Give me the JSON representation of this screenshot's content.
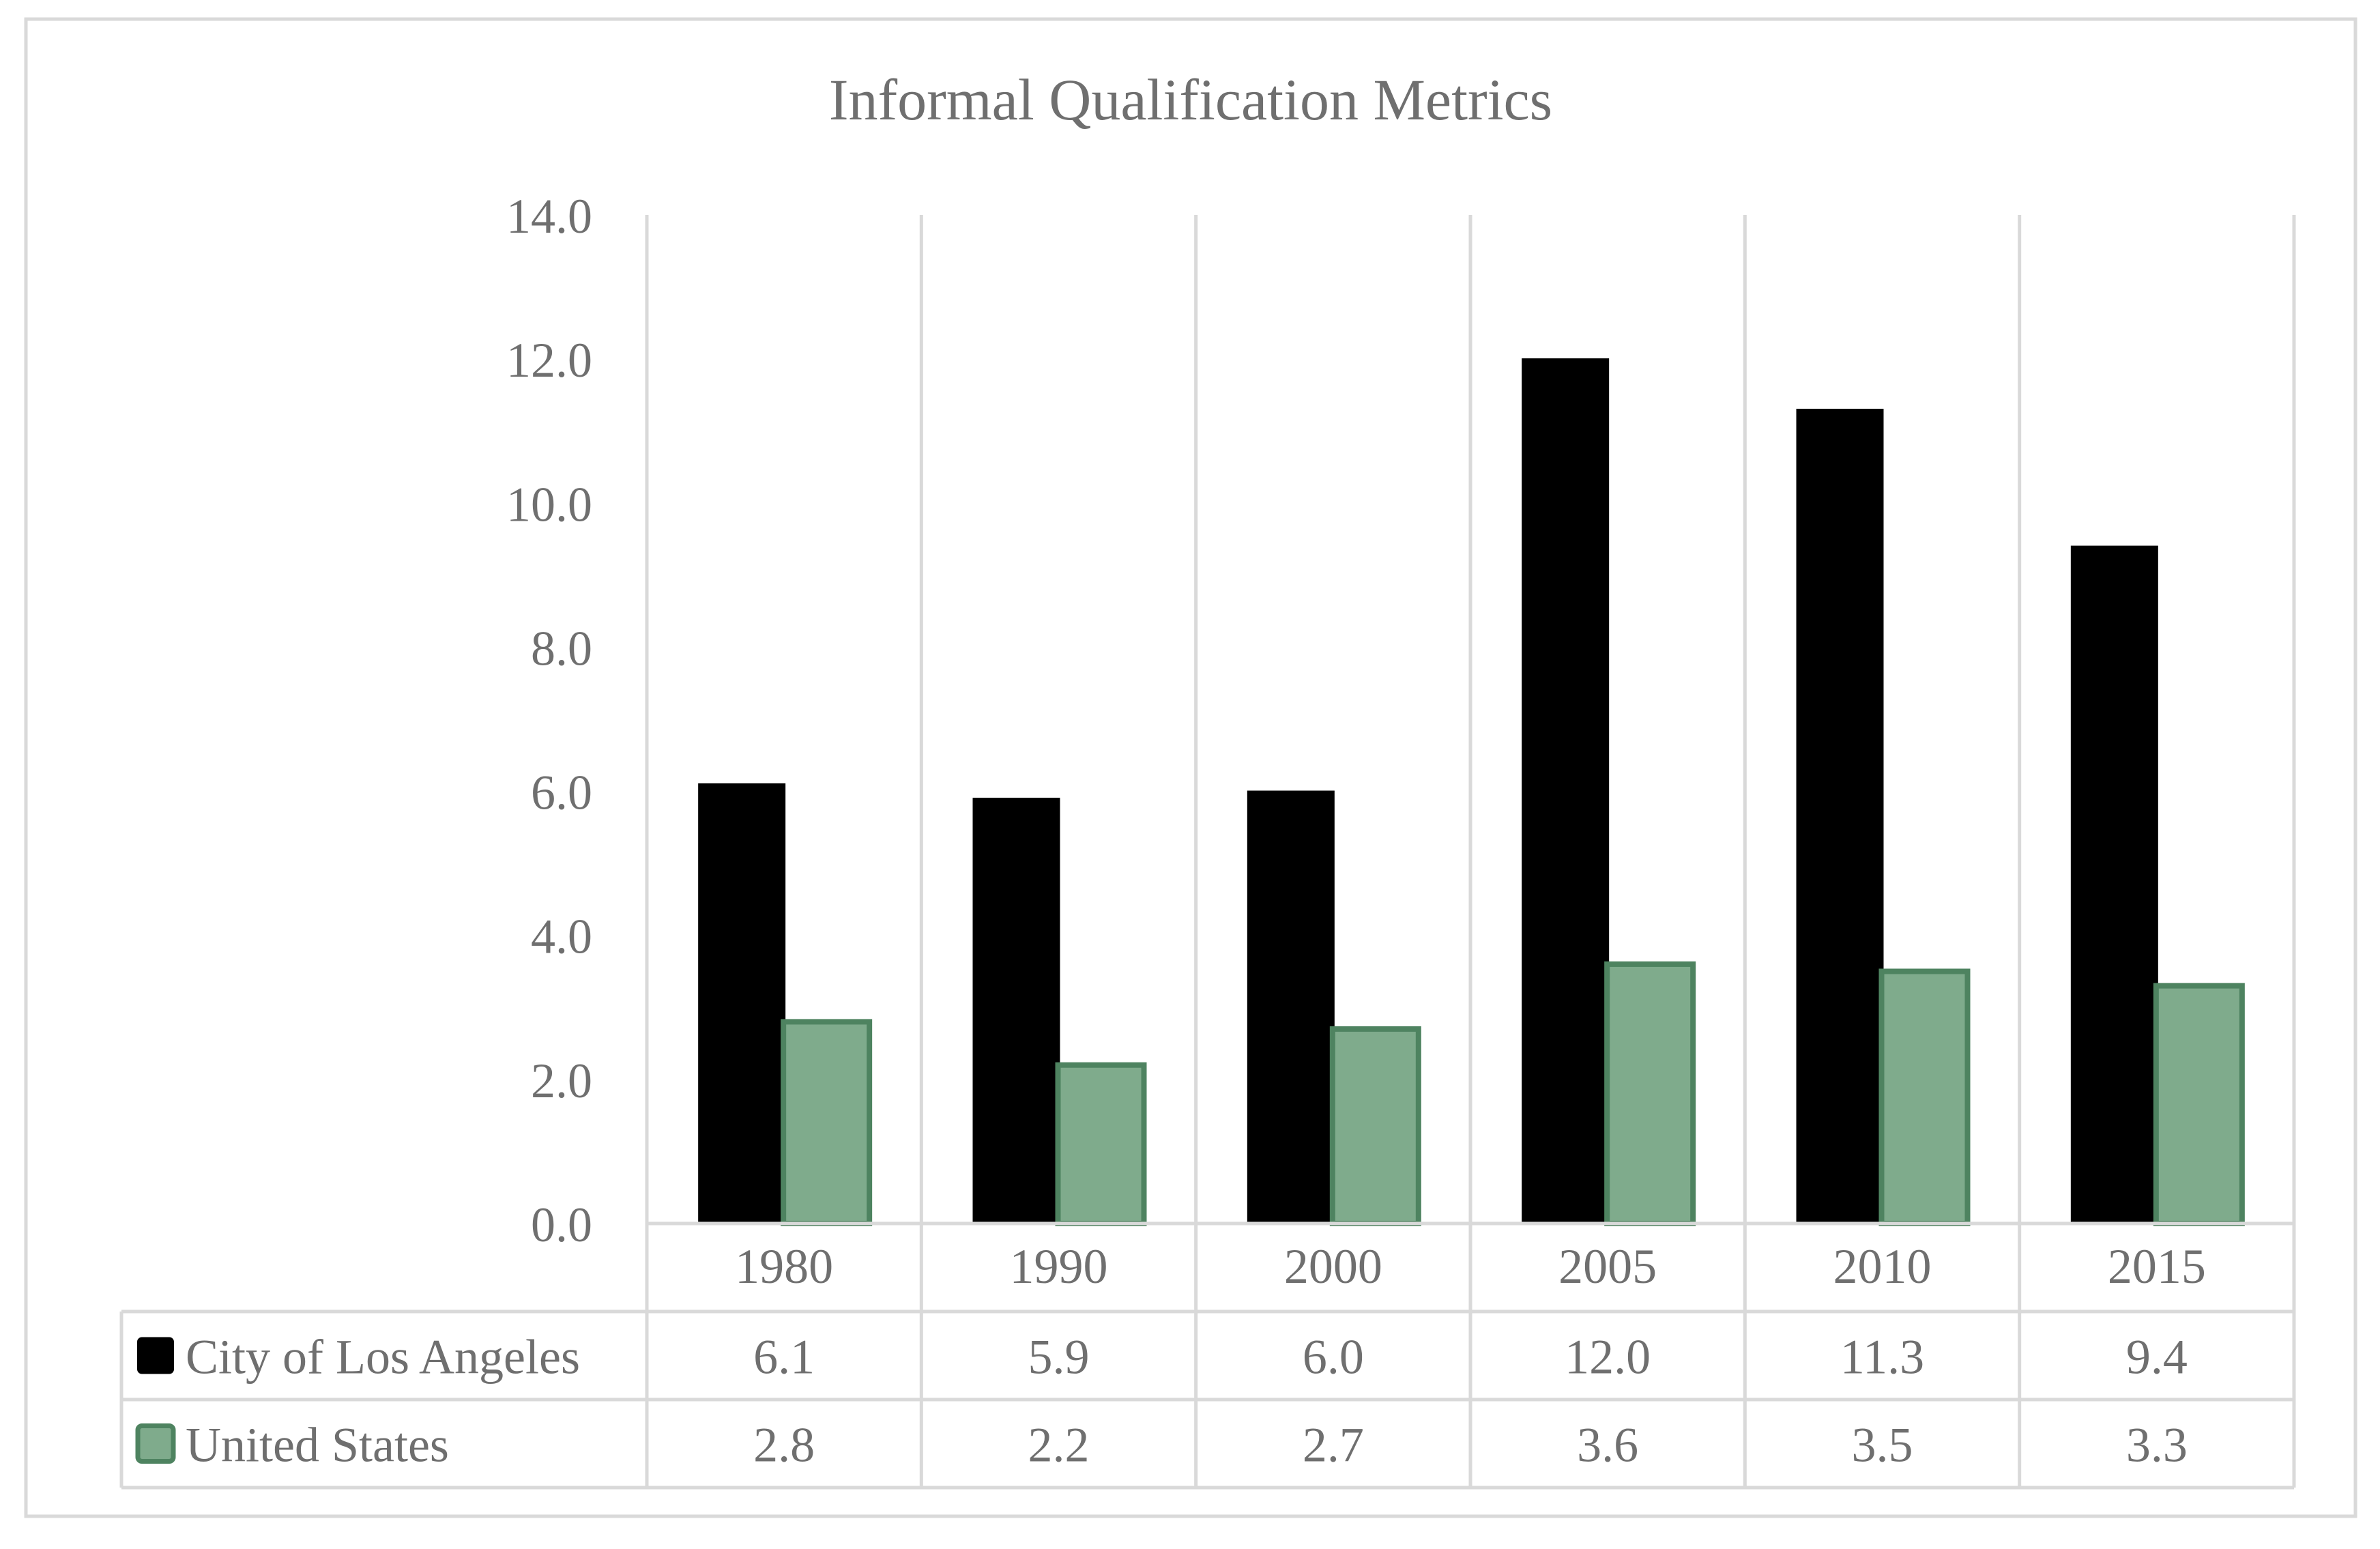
{
  "chart_data": {
    "type": "bar",
    "title": "Informal Qualification Metrics",
    "categories": [
      "1980",
      "1990",
      "2000",
      "2005",
      "2010",
      "2015"
    ],
    "series": [
      {
        "name": "City of Los Angeles",
        "values": [
          6.1,
          5.9,
          6.0,
          12.0,
          11.3,
          9.4
        ],
        "labels": [
          "6.1",
          "5.9",
          "6.0",
          "12.0",
          "11.3",
          "9.4"
        ],
        "color": "#000000",
        "stroke": "#000000"
      },
      {
        "name": "United States",
        "values": [
          2.8,
          2.2,
          2.7,
          3.6,
          3.5,
          3.3
        ],
        "labels": [
          "2.8",
          "2.2",
          "2.7",
          "3.6",
          "3.5",
          "3.3"
        ],
        "color": "#7fab8c",
        "stroke": "#4e8360"
      }
    ],
    "yticks": [
      "0.0",
      "2.0",
      "4.0",
      "6.0",
      "8.0",
      "10.0",
      "12.0",
      "14.0"
    ],
    "ylim": [
      0,
      14
    ],
    "xlabel": "",
    "ylabel": "",
    "grid": "vertical",
    "data_table": true,
    "colors": {
      "grid": "#d9d9d9",
      "text": "#6f6f6f",
      "frame": "#d9d9d9"
    }
  }
}
